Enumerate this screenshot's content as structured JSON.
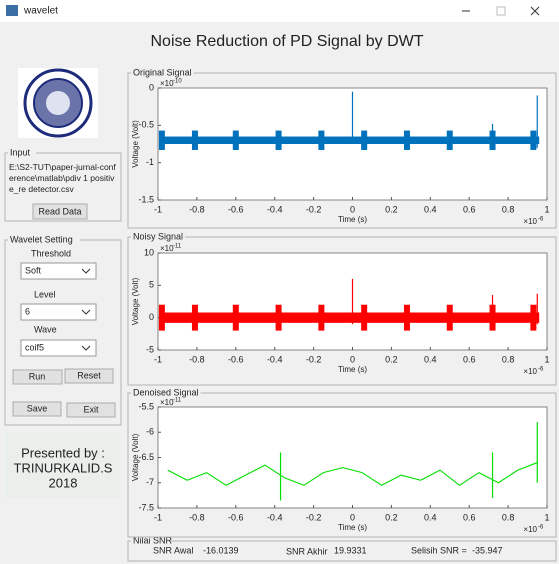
{
  "window": {
    "title": "wavelet"
  },
  "header": {
    "title": "Noise Reduction of PD Signal by DWT"
  },
  "input": {
    "title": "Input",
    "path": "E:\\S2-TUT\\paper-jurnal-conference\\matlab\\pdiv 1 positive_re detector.csv",
    "button": "Read Data"
  },
  "wavelet": {
    "title": "Wavelet Setting",
    "threshold_label": "Threshold",
    "threshold": "Soft",
    "level_label": "Level",
    "level": "6",
    "wave_label": "Wave",
    "wave": "coif5",
    "run": "Run",
    "reset": "Reset",
    "save": "Save",
    "exit": "Exit"
  },
  "credit": {
    "line1": "Presented by :",
    "line2": "TRINURKALID.S",
    "line3": "2018"
  },
  "plots": [
    {
      "title": "Original Signal",
      "type": "band",
      "color": "#0072bd",
      "xlabel": "Time (s)",
      "ylabel": "Voltage (Volt)",
      "exponent_base": "×10",
      "y_exponent": "-10",
      "x_exponent": "-6",
      "xlim": [
        -1,
        1
      ],
      "xticks": [
        -1,
        -0.8,
        -0.6,
        -0.4,
        -0.2,
        0,
        0.2,
        0.4,
        0.6,
        0.8,
        1
      ],
      "ylim": [
        -1.5,
        0
      ],
      "yticks": [
        -1.5,
        -1,
        -0.5,
        0
      ],
      "x_start": -0.99,
      "x_end": 0.96,
      "baseline": -0.7,
      "band": 0.05,
      "burst_amplitude": 0.13,
      "bursts": [
        -0.98,
        -0.81,
        -0.6,
        -0.38,
        -0.16,
        0.06,
        0.28,
        0.5,
        0.72,
        0.93
      ],
      "spikes": [
        {
          "x": 0,
          "top": -0.05,
          "bottom": -0.75
        },
        {
          "x": 0.72,
          "top": -0.48,
          "bottom": -0.8
        },
        {
          "x": 0.95,
          "top": -0.1,
          "bottom": -0.8
        }
      ]
    },
    {
      "title": "Noisy Signal",
      "type": "band",
      "color": "#ff0000",
      "xlabel": "Time (s)",
      "ylabel": "Voltage (Volt)",
      "exponent_base": "×10",
      "y_exponent": "-11",
      "x_exponent": "-6",
      "xlim": [
        -1,
        1
      ],
      "xticks": [
        -1,
        -0.8,
        -0.6,
        -0.4,
        -0.2,
        0,
        0.2,
        0.4,
        0.6,
        0.8,
        1
      ],
      "ylim": [
        -5,
        10
      ],
      "yticks": [
        -5,
        0,
        5,
        10
      ],
      "x_start": -0.99,
      "x_end": 0.96,
      "baseline": 0,
      "band": 0.8,
      "burst_amplitude": 2,
      "bursts": [
        -0.98,
        -0.81,
        -0.6,
        -0.38,
        -0.16,
        0.06,
        0.28,
        0.5,
        0.72,
        0.93
      ],
      "spikes": [
        {
          "x": 0,
          "top": 6,
          "bottom": -1
        },
        {
          "x": 0.72,
          "top": 3.5,
          "bottom": -1
        },
        {
          "x": 0.95,
          "top": 3.7,
          "bottom": -1
        }
      ]
    },
    {
      "title": "Denoised Signal",
      "type": "line",
      "color": "#00dd00",
      "xlabel": "Time (s)",
      "ylabel": "Voltage (Volt)",
      "exponent_base": "×10",
      "y_exponent": "-11",
      "x_exponent": "-6",
      "xlim": [
        -1,
        1
      ],
      "xticks": [
        -1,
        -0.8,
        -0.6,
        -0.4,
        -0.2,
        0,
        0.2,
        0.4,
        0.6,
        0.8,
        1
      ],
      "ylim": [
        -7.5,
        -5.5
      ],
      "yticks": [
        -7.5,
        -7,
        -6.5,
        -6,
        -5.5
      ],
      "x": [
        -0.95,
        -0.85,
        -0.75,
        -0.65,
        -0.55,
        -0.45,
        -0.35,
        -0.25,
        -0.15,
        -0.05,
        0.05,
        0.15,
        0.25,
        0.35,
        0.45,
        0.55,
        0.65,
        0.75,
        0.85,
        0.95
      ],
      "values": [
        -6.75,
        -6.95,
        -6.8,
        -7.05,
        -6.85,
        -6.65,
        -6.9,
        -7.05,
        -6.8,
        -6.7,
        -6.8,
        -7.05,
        -6.85,
        -6.95,
        -6.75,
        -7.05,
        -6.8,
        -7.0,
        -6.75,
        -6.6
      ],
      "spikes": [
        {
          "x": -0.37,
          "top": -6.4,
          "bottom": -7.35
        },
        {
          "x": 0.72,
          "top": -6.4,
          "bottom": -7.3
        },
        {
          "x": 0.95,
          "top": -5.8,
          "bottom": -7.0
        }
      ]
    }
  ],
  "snr": {
    "title": "Nilai SNR",
    "awal_label": "SNR Awal",
    "awal": -16.0139,
    "akhir_label": "SNR Akhir",
    "akhir": 19.9331,
    "selisih_label": "Selisih SNR =",
    "selisih": -35.947
  }
}
